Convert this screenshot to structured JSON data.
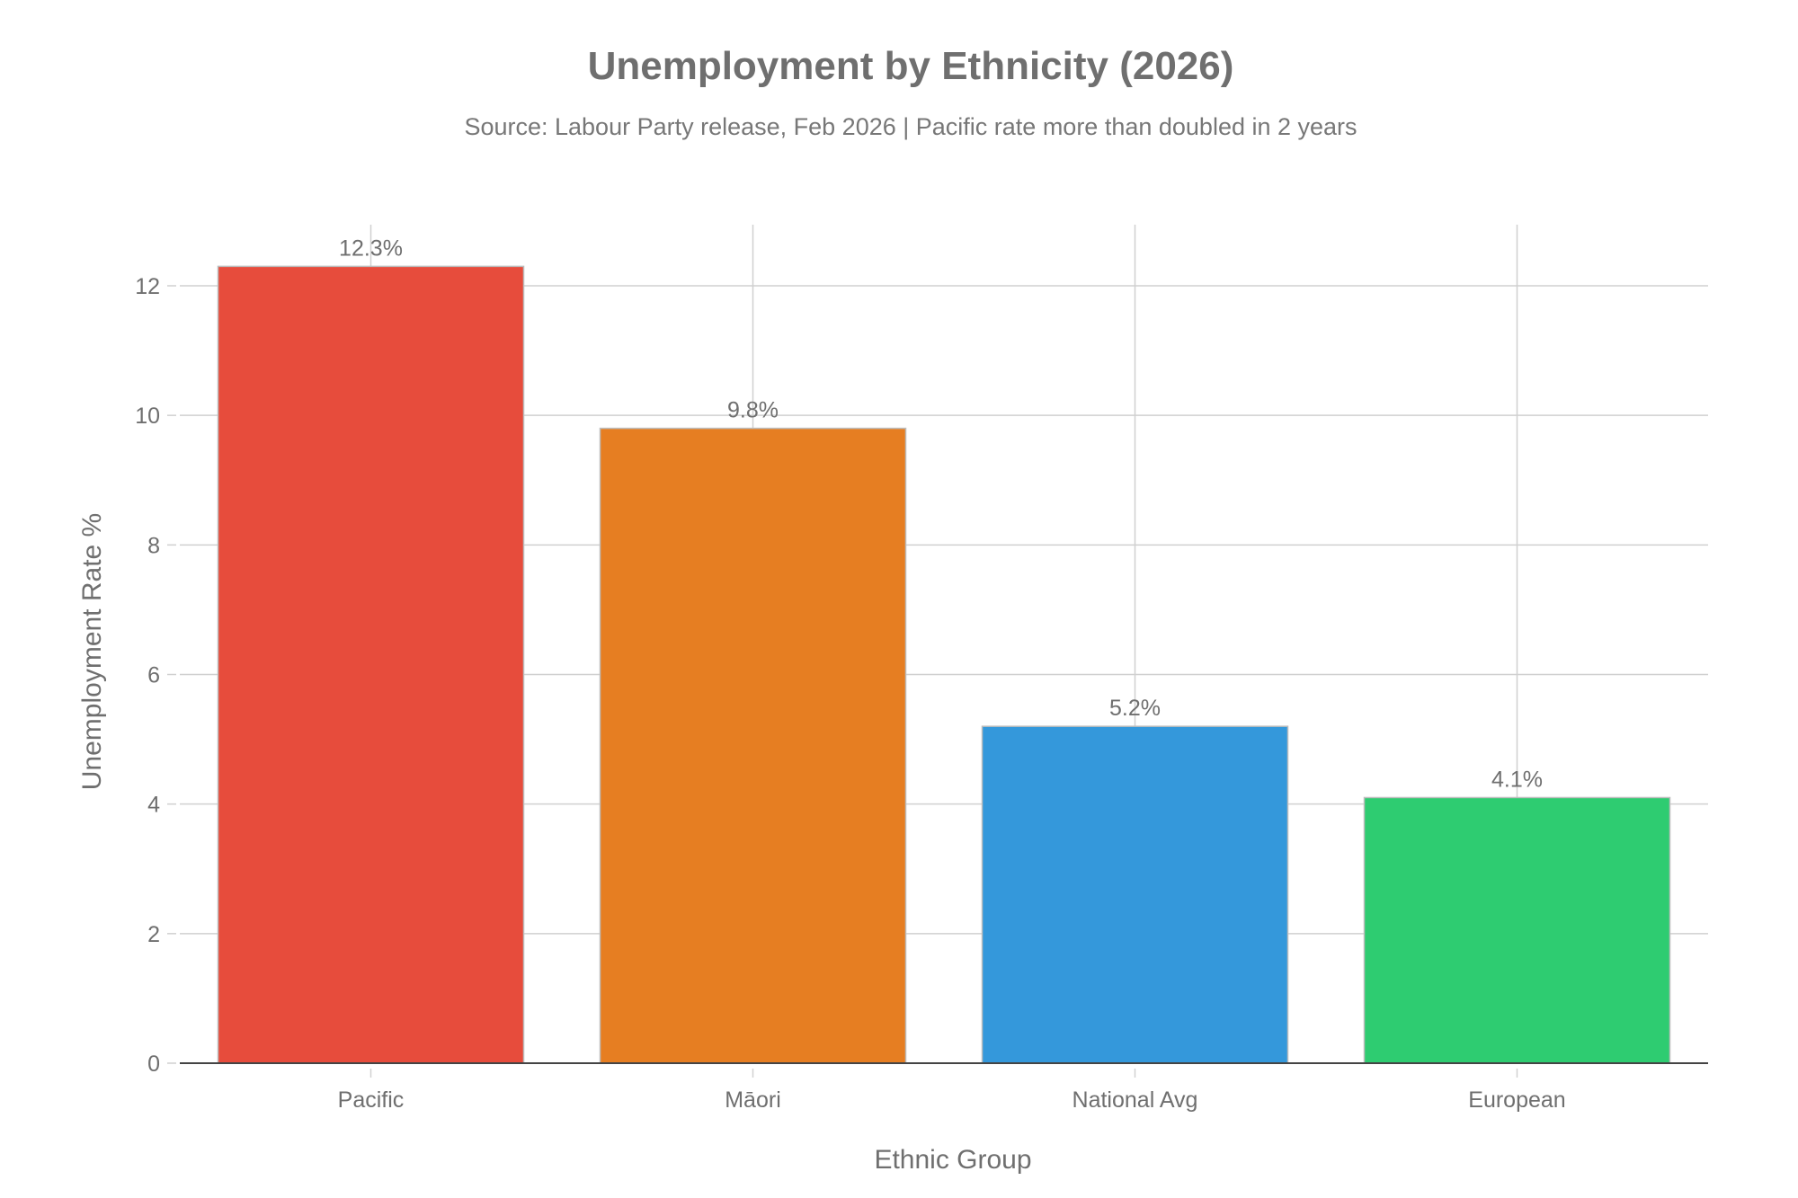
{
  "chart_data": {
    "type": "bar",
    "title": "Unemployment by Ethnicity (2026)",
    "subtitle": "Source: Labour Party release, Feb 2026 | Pacific rate more than doubled in 2 years",
    "xlabel": "Ethnic Group",
    "ylabel": "Unemployment Rate %",
    "categories": [
      "Pacific",
      "Māori",
      "National Avg",
      "European"
    ],
    "values": [
      12.3,
      9.8,
      5.2,
      4.1
    ],
    "data_labels": [
      "12.3%",
      "9.8%",
      "5.2%",
      "4.1%"
    ],
    "colors": [
      "#e74c3c",
      "#e67e22",
      "#3498db",
      "#2ecc71"
    ],
    "ylim": [
      0,
      13
    ],
    "yticks": [
      0,
      2,
      4,
      6,
      8,
      10,
      12
    ],
    "ytick_labels": [
      "0",
      "2",
      "4",
      "6",
      "8",
      "10",
      "12"
    ],
    "grid": true,
    "legend": "none"
  }
}
